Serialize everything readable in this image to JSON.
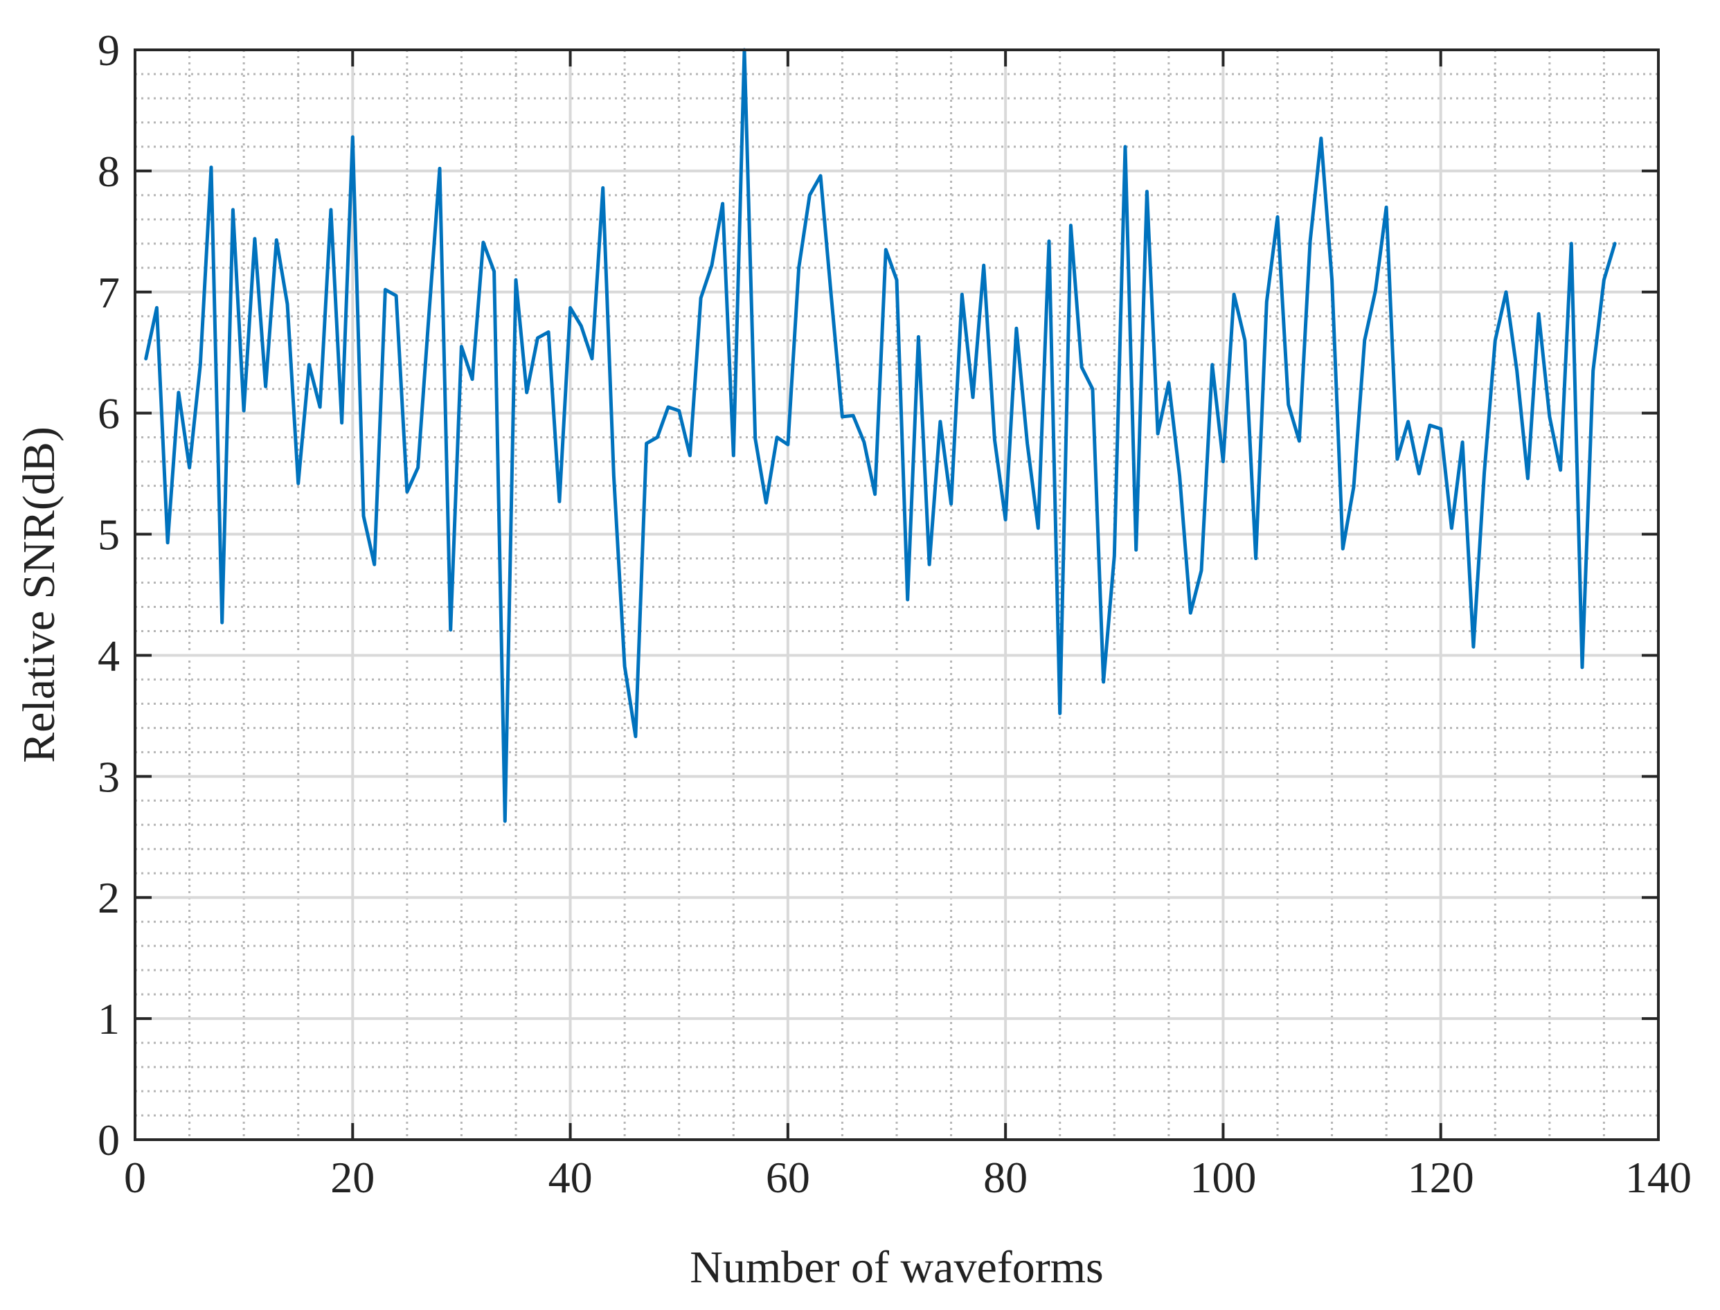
{
  "chart_data": {
    "type": "line",
    "title": "",
    "xlabel": "Number of waveforms",
    "ylabel": "Relative SNR(dB)",
    "xlim": [
      0,
      140
    ],
    "ylim": [
      0,
      9
    ],
    "xticks": [
      0,
      20,
      40,
      60,
      80,
      100,
      120,
      140
    ],
    "yticks": [
      0,
      1,
      2,
      3,
      4,
      5,
      6,
      7,
      8,
      9
    ],
    "x_minor_step": 5,
    "y_minor_step": 0.2,
    "grid": {
      "major": true,
      "minor": true,
      "minor_style": "dotted"
    },
    "legend": "none",
    "series": [
      {
        "color": "#0072BD",
        "x": [
          1,
          2,
          3,
          4,
          5,
          6,
          7,
          8,
          9,
          10,
          11,
          12,
          13,
          14,
          15,
          16,
          17,
          18,
          19,
          20,
          21,
          22,
          23,
          24,
          25,
          26,
          27,
          28,
          29,
          30,
          31,
          32,
          33,
          34,
          35,
          36,
          37,
          38,
          39,
          40,
          41,
          42,
          43,
          44,
          45,
          46,
          47,
          48,
          49,
          50,
          51,
          52,
          53,
          54,
          55,
          56,
          57,
          58,
          59,
          60,
          61,
          62,
          63,
          64,
          65,
          66,
          67,
          68,
          69,
          70,
          71,
          72,
          73,
          74,
          75,
          76,
          77,
          78,
          79,
          80,
          81,
          82,
          83,
          84,
          85,
          86,
          87,
          88,
          89,
          90,
          91,
          92,
          93,
          94,
          95,
          96,
          97,
          98,
          99,
          100,
          101,
          102,
          103,
          104,
          105,
          106,
          107,
          108,
          109,
          110,
          111,
          112,
          113,
          114,
          115,
          116,
          117,
          118,
          119,
          120,
          121,
          122,
          123,
          124,
          125,
          126,
          127,
          128,
          129,
          130,
          131,
          132,
          133,
          134,
          135,
          136
        ],
        "y": [
          6.45,
          6.87,
          4.93,
          6.17,
          5.55,
          6.4,
          8.03,
          4.27,
          7.68,
          6.02,
          7.44,
          6.22,
          7.43,
          6.9,
          5.42,
          6.4,
          6.05,
          7.68,
          5.92,
          8.28,
          5.15,
          4.75,
          7.02,
          6.97,
          5.35,
          5.55,
          6.8,
          8.02,
          4.21,
          6.55,
          6.28,
          7.41,
          7.17,
          2.63,
          7.1,
          6.17,
          6.62,
          6.67,
          5.27,
          6.87,
          6.72,
          6.45,
          7.86,
          5.48,
          3.91,
          3.33,
          5.75,
          5.8,
          6.05,
          6.02,
          5.65,
          6.95,
          7.22,
          7.73,
          5.65,
          9.0,
          5.79,
          5.26,
          5.8,
          5.74,
          7.2,
          7.8,
          7.96,
          6.95,
          5.97,
          5.98,
          5.76,
          5.33,
          7.35,
          7.1,
          4.46,
          6.63,
          4.75,
          5.93,
          5.25,
          6.98,
          6.13,
          7.22,
          5.78,
          5.12,
          6.7,
          5.75,
          5.05,
          7.42,
          3.52,
          7.55,
          6.38,
          6.2,
          3.78,
          4.82,
          8.2,
          4.87,
          7.83,
          5.83,
          6.25,
          5.48,
          4.35,
          4.7,
          6.4,
          5.6,
          6.98,
          6.6,
          4.8,
          6.92,
          7.62,
          6.07,
          5.77,
          7.42,
          8.27,
          7.1,
          4.88,
          5.39,
          6.6,
          7.01,
          7.7,
          5.62,
          5.93,
          5.5,
          5.9,
          5.87,
          5.05,
          5.76,
          4.07,
          5.51,
          6.6,
          7.0,
          6.35,
          5.46,
          6.82,
          5.97,
          5.53,
          7.4,
          3.9,
          6.35,
          7.1,
          7.4
        ]
      }
    ]
  }
}
